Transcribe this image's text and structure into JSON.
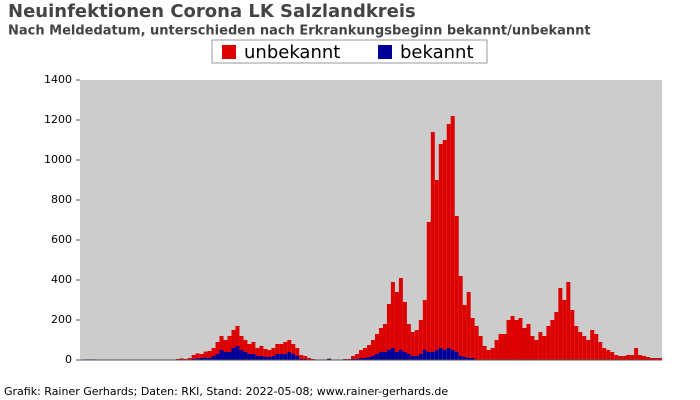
{
  "chart_data": {
    "type": "bar",
    "stacked": true,
    "title": "Neuinfektionen Corona LK Salzlandkreis",
    "subtitle": "Nach Meldedatum, unterschieden nach Erkrankungsbeginn bekannt/unbekannt",
    "footer": "Grafik: Rainer Gerhards; Daten: RKI, Stand: 2022-05-08; www.rainer-gerhards.de",
    "ylim": [
      0,
      1400
    ],
    "yticks": [
      0,
      200,
      400,
      600,
      800,
      1000,
      1200,
      1400
    ],
    "legend": "top",
    "background": "#cccccc",
    "categories": [
      null,
      null,
      null,
      null,
      null,
      null,
      null,
      null,
      null,
      null,
      null,
      null,
      null,
      null,
      null,
      null,
      null,
      null,
      null,
      null,
      null,
      null,
      null,
      null,
      null,
      null,
      null,
      null,
      null,
      null,
      null,
      null,
      null,
      null,
      null,
      null,
      null,
      null,
      null,
      null,
      null,
      null,
      null,
      null,
      null,
      null,
      null,
      null,
      null,
      null,
      null,
      null,
      null,
      null,
      null,
      null,
      null,
      null,
      null,
      null,
      null,
      null,
      null,
      null,
      null,
      null,
      null,
      null,
      null,
      null,
      null,
      null,
      null,
      null,
      null,
      null,
      null,
      null,
      null,
      null,
      null,
      null,
      null,
      null,
      null,
      null,
      null,
      null,
      null,
      null,
      null,
      null,
      null,
      null,
      null,
      null,
      null,
      null,
      null,
      null,
      null,
      null,
      null,
      null,
      null,
      null,
      null,
      null,
      null,
      null,
      null,
      null,
      null,
      null,
      null,
      null,
      null,
      null,
      null,
      null,
      null,
      null,
      null,
      null,
      null,
      null,
      null,
      null,
      null,
      null,
      null,
      null,
      null,
      null,
      null,
      null,
      null,
      null,
      null,
      null,
      null,
      null,
      null,
      null,
      null,
      null
    ],
    "series": [
      {
        "name": "bekannt",
        "color": "#000099",
        "values": [
          0,
          3,
          3,
          3,
          0,
          0,
          0,
          0,
          0,
          0,
          0,
          0,
          0,
          0,
          0,
          0,
          0,
          0,
          0,
          0,
          0,
          0,
          0,
          0,
          0,
          0,
          0,
          0,
          5,
          8,
          10,
          12,
          10,
          20,
          30,
          50,
          40,
          40,
          60,
          70,
          50,
          40,
          30,
          30,
          20,
          20,
          15,
          15,
          20,
          30,
          30,
          30,
          40,
          30,
          20,
          5,
          5,
          0,
          0,
          0,
          0,
          0,
          5,
          0,
          0,
          0,
          0,
          0,
          5,
          5,
          10,
          10,
          15,
          20,
          30,
          40,
          40,
          50,
          60,
          40,
          50,
          40,
          30,
          20,
          20,
          30,
          50,
          40,
          40,
          50,
          60,
          50,
          60,
          50,
          40,
          20,
          15,
          10,
          10,
          0,
          0,
          0,
          0,
          0,
          0,
          0,
          0,
          0,
          0,
          0,
          0,
          0,
          0,
          0,
          0,
          0,
          0,
          0,
          0,
          0,
          0,
          0,
          0,
          0,
          0,
          0,
          0,
          0,
          0,
          0,
          0,
          0,
          0,
          0,
          0,
          0,
          0,
          0,
          0,
          0,
          0,
          0,
          0,
          0,
          0,
          0
        ]
      },
      {
        "name": "unbekannt",
        "color": "#dd0000",
        "values": [
          0,
          0,
          0,
          0,
          0,
          0,
          0,
          0,
          0,
          0,
          0,
          0,
          0,
          0,
          0,
          0,
          0,
          0,
          0,
          0,
          0,
          0,
          0,
          0,
          5,
          8,
          5,
          10,
          20,
          25,
          20,
          30,
          35,
          40,
          60,
          70,
          60,
          80,
          90,
          100,
          70,
          60,
          50,
          60,
          40,
          50,
          40,
          35,
          40,
          50,
          50,
          60,
          60,
          50,
          40,
          20,
          15,
          10,
          5,
          0,
          0,
          0,
          2,
          0,
          0,
          2,
          5,
          5,
          15,
          25,
          40,
          50,
          60,
          80,
          100,
          120,
          140,
          230,
          330,
          300,
          360,
          250,
          150,
          120,
          130,
          170,
          250,
          650,
          1100,
          850,
          1020,
          1050,
          1120,
          1170,
          680,
          400,
          260,
          330,
          200,
          170,
          120,
          70,
          50,
          60,
          100,
          130,
          130,
          200,
          220,
          200,
          210,
          160,
          180,
          120,
          100,
          140,
          120,
          170,
          200,
          240,
          360,
          300,
          390,
          250,
          170,
          140,
          120,
          100,
          150,
          130,
          90,
          60,
          50,
          40,
          25,
          20,
          20,
          25,
          25,
          60,
          25,
          20,
          15,
          10,
          10,
          10
        ]
      }
    ]
  }
}
